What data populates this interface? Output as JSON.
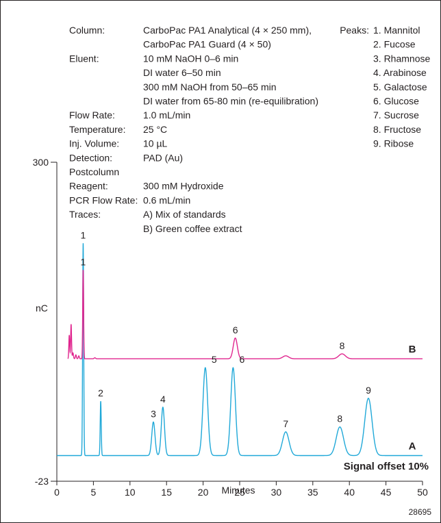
{
  "conditions": [
    {
      "key": "Column:",
      "value": "CarboPac PA1 Analytical (4 × 250 mm),"
    },
    {
      "key": "",
      "value": "CarboPac PA1 Guard (4 × 50)"
    },
    {
      "key": "Eluent:",
      "value": "10 mM NaOH 0–6 min"
    },
    {
      "key": "",
      "value": "DI water 6–50 min"
    },
    {
      "key": "",
      "value": "300 mM NaOH from 50–65 min"
    },
    {
      "key": "",
      "value": "DI water from 65-80 min (re-equilibration)"
    },
    {
      "key": "Flow Rate:",
      "value": "1.0 mL/min"
    },
    {
      "key": "Temperature:",
      "value": "25 °C"
    },
    {
      "key": "Inj. Volume:",
      "value": "10 µL"
    },
    {
      "key": "Detection:",
      "value": "PAD (Au)"
    },
    {
      "key": "Postcolumn",
      "value": ""
    },
    {
      "key": "Reagent:",
      "value": "300 mM Hydroxide"
    },
    {
      "key": "PCR Flow Rate:",
      "value": "0.6 mL/min"
    },
    {
      "key": "Traces:",
      "value": "A) Mix of standards"
    },
    {
      "key": "",
      "value": "B) Green coffee extract"
    }
  ],
  "peaks_title": "Peaks:",
  "peaks": [
    "1. Mannitol",
    "2. Fucose",
    "3. Rhamnose",
    "4. Arabinose",
    "5. Galactose",
    "6. Glucose",
    "7. Sucrose",
    "8. Fructose",
    "9. Ribose"
  ],
  "figure_id": "28695",
  "colors": {
    "trace_a": "#1fa8d8",
    "trace_b": "#e0258e",
    "axis": "#231f20"
  },
  "chart_data": {
    "type": "line",
    "xlabel": "Minutes",
    "ylabel": "nC",
    "xlim": [
      0,
      50
    ],
    "ylim": [
      -23,
      300
    ],
    "x_ticks": [
      0,
      5,
      10,
      15,
      20,
      25,
      30,
      35,
      40,
      45,
      50
    ],
    "y_ticks": [
      300,
      -23
    ],
    "annotation": "Signal offset 10%",
    "series": [
      {
        "name": "A",
        "baseline": 3,
        "color": "#1fa8d8",
        "peaks": [
          {
            "label": "1",
            "t": 3.6,
            "h": 215,
            "w": 0.07
          },
          {
            "label": "2",
            "t": 6.0,
            "h": 55,
            "w": 0.07
          },
          {
            "label": "3",
            "t": 13.2,
            "h": 34,
            "w": 0.22
          },
          {
            "label": "4",
            "t": 14.5,
            "h": 49,
            "w": 0.22
          },
          {
            "label": "5",
            "t": 20.3,
            "h": 89,
            "w": 0.32
          },
          {
            "label": "6",
            "t": 24.1,
            "h": 89,
            "w": 0.32
          },
          {
            "label": "7",
            "t": 31.3,
            "h": 24,
            "w": 0.45
          },
          {
            "label": "8",
            "t": 38.7,
            "h": 29,
            "w": 0.5
          },
          {
            "label": "9",
            "t": 42.6,
            "h": 58,
            "w": 0.5
          }
        ]
      },
      {
        "name": "B",
        "baseline": 101,
        "color": "#e0258e",
        "peaks": [
          {
            "label": "",
            "t": 1.7,
            "h": 24,
            "w": 0.06
          },
          {
            "label": "",
            "t": 1.95,
            "h": 35,
            "w": 0.06
          },
          {
            "label": "",
            "t": 2.2,
            "h": 6,
            "w": 0.07
          },
          {
            "label": "",
            "t": 2.6,
            "h": 4,
            "w": 0.07
          },
          {
            "label": "",
            "t": 3.0,
            "h": 3,
            "w": 0.07
          },
          {
            "label": "1",
            "t": 3.6,
            "h": 90,
            "w": 0.06
          },
          {
            "label": "",
            "t": 5.2,
            "h": 1,
            "w": 0.1
          },
          {
            "label": "6",
            "t": 24.4,
            "h": 21,
            "w": 0.28
          },
          {
            "label": "",
            "t": 31.3,
            "h": 3,
            "w": 0.4
          },
          {
            "label": "8",
            "t": 39.0,
            "h": 5,
            "w": 0.45
          }
        ]
      }
    ]
  }
}
